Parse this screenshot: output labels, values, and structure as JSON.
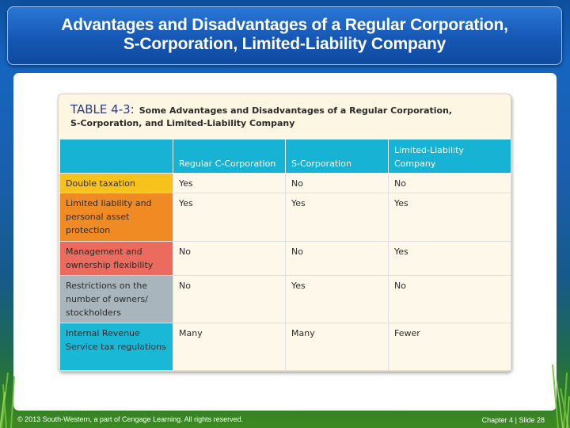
{
  "slide": {
    "title_line1": "Advantages and Disadvantages of a Regular Corporation,",
    "title_line2": "S-Corporation, Limited-Liability Company",
    "footer_left": "© 2013 South-Western, a part of Cengage Learning. All rights reserved.",
    "footer_right": "Chapter 4 | Slide 28"
  },
  "table": {
    "label": "TABLE 4-3:",
    "caption_line1": "Some Advantages and Disadvantages of a Regular Corporation,",
    "caption_line2": "S-Corporation, and Limited-Liability Company",
    "columns": [
      "",
      "Regular C-Corporation",
      "S-Corporation",
      "Limited-Liability Company"
    ],
    "rows": [
      {
        "label": "Double taxation",
        "values": [
          "Yes",
          "No",
          "No"
        ]
      },
      {
        "label": "Limited liability and personal asset protection",
        "values": [
          "Yes",
          "Yes",
          "Yes"
        ]
      },
      {
        "label": "Management and ownership flexibility",
        "values": [
          "No",
          "No",
          "Yes"
        ]
      },
      {
        "label": "Restrictions on the number of owners/ stockholders",
        "values": [
          "No",
          "Yes",
          "No"
        ]
      },
      {
        "label": "Internal Revenue Service tax regulations",
        "values": [
          "Many",
          "Many",
          "Fewer"
        ]
      }
    ]
  },
  "colors": {
    "header": "#17b3d4",
    "row_label_colors": [
      "#f7c21c",
      "#f08a22",
      "#ec6b5f",
      "#a9b5bd",
      "#18b8d6"
    ],
    "title_bar": "#1657b4"
  }
}
